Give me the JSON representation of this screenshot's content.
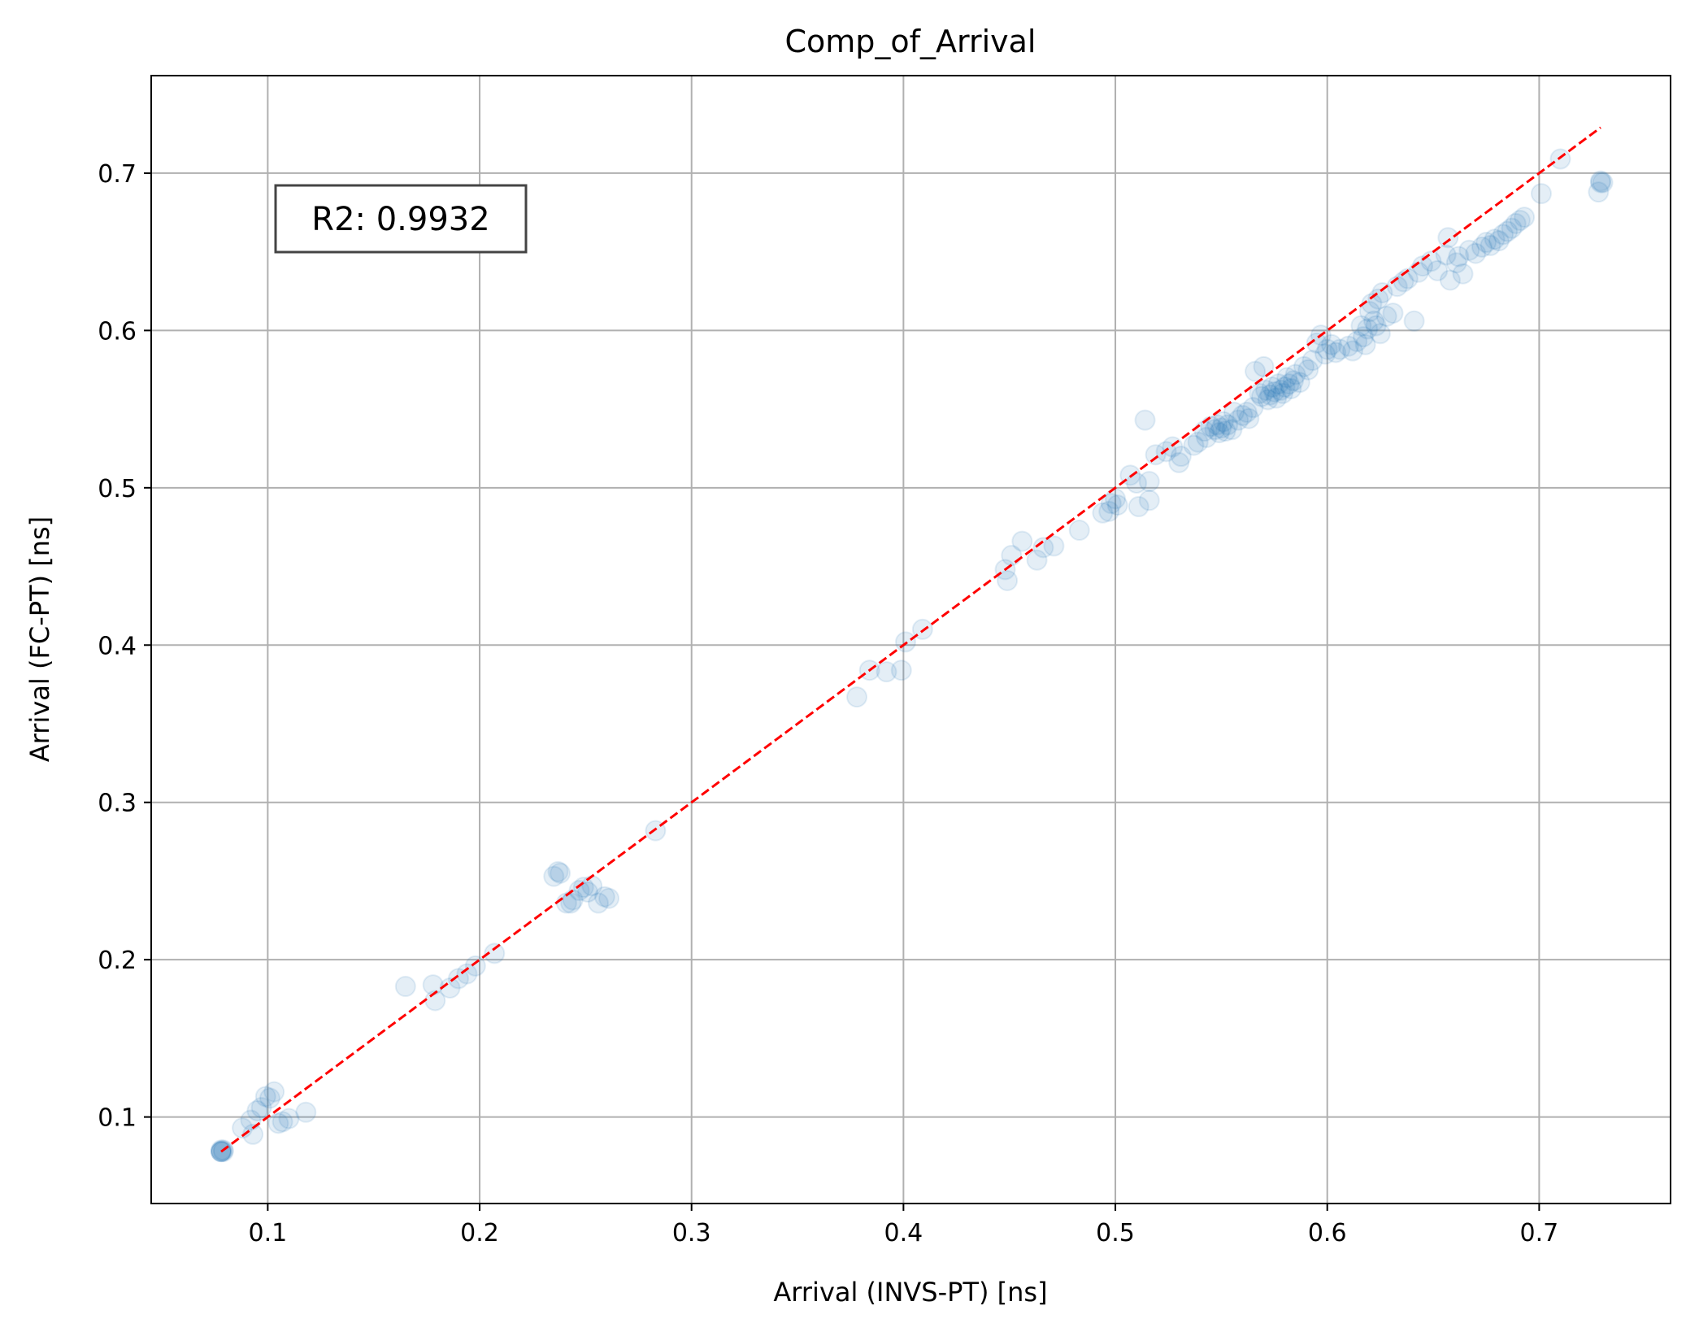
{
  "chart_data": {
    "type": "scatter",
    "title": "Comp_of_Arrival",
    "xlabel": "Arrival (INVS-PT) [ns]",
    "ylabel": "Arrival (FC-PT) [ns]",
    "xlim": [
      0.045,
      0.762
    ],
    "ylim": [
      0.045,
      0.762
    ],
    "xticks": [
      0.1,
      0.2,
      0.3,
      0.4,
      0.5,
      0.6,
      0.7
    ],
    "yticks": [
      0.1,
      0.2,
      0.3,
      0.4,
      0.5,
      0.6,
      0.7
    ],
    "xtick_labels": [
      "0.1",
      "0.2",
      "0.3",
      "0.4",
      "0.5",
      "0.6",
      "0.7"
    ],
    "ytick_labels": [
      "0.1",
      "0.2",
      "0.3",
      "0.4",
      "0.5",
      "0.6",
      "0.7"
    ],
    "grid": true,
    "point_color": "#1f77b4",
    "point_alpha": 0.12,
    "fit_line": {
      "x": [
        0.078,
        0.729
      ],
      "y": [
        0.078,
        0.729
      ],
      "color": "#ff0000",
      "style": "dashed"
    },
    "annotation": {
      "text": "R2: 0.9932",
      "position": "top-left"
    },
    "points": [
      [
        0.078,
        0.078
      ],
      [
        0.078,
        0.078
      ],
      [
        0.078,
        0.078
      ],
      [
        0.079,
        0.079
      ],
      [
        0.078,
        0.079
      ],
      [
        0.079,
        0.078
      ],
      [
        0.088,
        0.093
      ],
      [
        0.092,
        0.098
      ],
      [
        0.093,
        0.089
      ],
      [
        0.095,
        0.104
      ],
      [
        0.097,
        0.106
      ],
      [
        0.099,
        0.113
      ],
      [
        0.101,
        0.112
      ],
      [
        0.103,
        0.116
      ],
      [
        0.105,
        0.096
      ],
      [
        0.107,
        0.097
      ],
      [
        0.11,
        0.099
      ],
      [
        0.118,
        0.103
      ],
      [
        0.165,
        0.183
      ],
      [
        0.178,
        0.184
      ],
      [
        0.179,
        0.174
      ],
      [
        0.186,
        0.182
      ],
      [
        0.19,
        0.188
      ],
      [
        0.194,
        0.191
      ],
      [
        0.198,
        0.196
      ],
      [
        0.207,
        0.204
      ],
      [
        0.235,
        0.253
      ],
      [
        0.237,
        0.256
      ],
      [
        0.238,
        0.255
      ],
      [
        0.241,
        0.236
      ],
      [
        0.243,
        0.236
      ],
      [
        0.244,
        0.238
      ],
      [
        0.247,
        0.244
      ],
      [
        0.249,
        0.246
      ],
      [
        0.251,
        0.243
      ],
      [
        0.253,
        0.247
      ],
      [
        0.256,
        0.236
      ],
      [
        0.259,
        0.24
      ],
      [
        0.261,
        0.239
      ],
      [
        0.283,
        0.282
      ],
      [
        0.378,
        0.367
      ],
      [
        0.384,
        0.384
      ],
      [
        0.392,
        0.383
      ],
      [
        0.399,
        0.384
      ],
      [
        0.401,
        0.402
      ],
      [
        0.409,
        0.41
      ],
      [
        0.448,
        0.448
      ],
      [
        0.449,
        0.441
      ],
      [
        0.451,
        0.457
      ],
      [
        0.456,
        0.466
      ],
      [
        0.463,
        0.454
      ],
      [
        0.466,
        0.462
      ],
      [
        0.471,
        0.463
      ],
      [
        0.483,
        0.473
      ],
      [
        0.494,
        0.484
      ],
      [
        0.497,
        0.485
      ],
      [
        0.498,
        0.49
      ],
      [
        0.5,
        0.493
      ],
      [
        0.501,
        0.489
      ],
      [
        0.507,
        0.508
      ],
      [
        0.51,
        0.503
      ],
      [
        0.511,
        0.488
      ],
      [
        0.514,
        0.543
      ],
      [
        0.516,
        0.492
      ],
      [
        0.516,
        0.504
      ],
      [
        0.519,
        0.521
      ],
      [
        0.524,
        0.523
      ],
      [
        0.527,
        0.526
      ],
      [
        0.53,
        0.516
      ],
      [
        0.531,
        0.52
      ],
      [
        0.537,
        0.527
      ],
      [
        0.539,
        0.529
      ],
      [
        0.542,
        0.536
      ],
      [
        0.543,
        0.532
      ],
      [
        0.545,
        0.539
      ],
      [
        0.547,
        0.537
      ],
      [
        0.548,
        0.54
      ],
      [
        0.549,
        0.535
      ],
      [
        0.55,
        0.538
      ],
      [
        0.551,
        0.542
      ],
      [
        0.552,
        0.536
      ],
      [
        0.553,
        0.54
      ],
      [
        0.555,
        0.537
      ],
      [
        0.556,
        0.548
      ],
      [
        0.558,
        0.543
      ],
      [
        0.56,
        0.546
      ],
      [
        0.562,
        0.548
      ],
      [
        0.563,
        0.544
      ],
      [
        0.565,
        0.551
      ],
      [
        0.566,
        0.574
      ],
      [
        0.568,
        0.56
      ],
      [
        0.569,
        0.558
      ],
      [
        0.57,
        0.577
      ],
      [
        0.571,
        0.562
      ],
      [
        0.572,
        0.556
      ],
      [
        0.573,
        0.559
      ],
      [
        0.574,
        0.564
      ],
      [
        0.575,
        0.561
      ],
      [
        0.576,
        0.557
      ],
      [
        0.577,
        0.566
      ],
      [
        0.578,
        0.562
      ],
      [
        0.579,
        0.56
      ],
      [
        0.58,
        0.564
      ],
      [
        0.581,
        0.57
      ],
      [
        0.582,
        0.566
      ],
      [
        0.583,
        0.563
      ],
      [
        0.584,
        0.568
      ],
      [
        0.585,
        0.572
      ],
      [
        0.587,
        0.567
      ],
      [
        0.589,
        0.577
      ],
      [
        0.591,
        0.575
      ],
      [
        0.593,
        0.581
      ],
      [
        0.595,
        0.592
      ],
      [
        0.597,
        0.597
      ],
      [
        0.599,
        0.585
      ],
      [
        0.6,
        0.588
      ],
      [
        0.602,
        0.591
      ],
      [
        0.604,
        0.586
      ],
      [
        0.606,
        0.588
      ],
      [
        0.61,
        0.59
      ],
      [
        0.612,
        0.587
      ],
      [
        0.614,
        0.593
      ],
      [
        0.616,
        0.603
      ],
      [
        0.617,
        0.596
      ],
      [
        0.618,
        0.591
      ],
      [
        0.619,
        0.601
      ],
      [
        0.62,
        0.612
      ],
      [
        0.621,
        0.617
      ],
      [
        0.622,
        0.606
      ],
      [
        0.623,
        0.603
      ],
      [
        0.624,
        0.62
      ],
      [
        0.625,
        0.598
      ],
      [
        0.626,
        0.624
      ],
      [
        0.628,
        0.609
      ],
      [
        0.631,
        0.611
      ],
      [
        0.633,
        0.628
      ],
      [
        0.636,
        0.631
      ],
      [
        0.638,
        0.633
      ],
      [
        0.641,
        0.606
      ],
      [
        0.643,
        0.637
      ],
      [
        0.645,
        0.641
      ],
      [
        0.649,
        0.644
      ],
      [
        0.652,
        0.638
      ],
      [
        0.656,
        0.648
      ],
      [
        0.657,
        0.659
      ],
      [
        0.658,
        0.632
      ],
      [
        0.661,
        0.643
      ],
      [
        0.662,
        0.647
      ],
      [
        0.664,
        0.636
      ],
      [
        0.667,
        0.651
      ],
      [
        0.67,
        0.649
      ],
      [
        0.673,
        0.653
      ],
      [
        0.675,
        0.656
      ],
      [
        0.677,
        0.654
      ],
      [
        0.679,
        0.658
      ],
      [
        0.681,
        0.657
      ],
      [
        0.683,
        0.661
      ],
      [
        0.685,
        0.663
      ],
      [
        0.687,
        0.665
      ],
      [
        0.689,
        0.668
      ],
      [
        0.691,
        0.67
      ],
      [
        0.693,
        0.672
      ],
      [
        0.701,
        0.687
      ],
      [
        0.71,
        0.709
      ],
      [
        0.728,
        0.688
      ],
      [
        0.729,
        0.694
      ],
      [
        0.729,
        0.695
      ],
      [
        0.73,
        0.694
      ]
    ]
  }
}
